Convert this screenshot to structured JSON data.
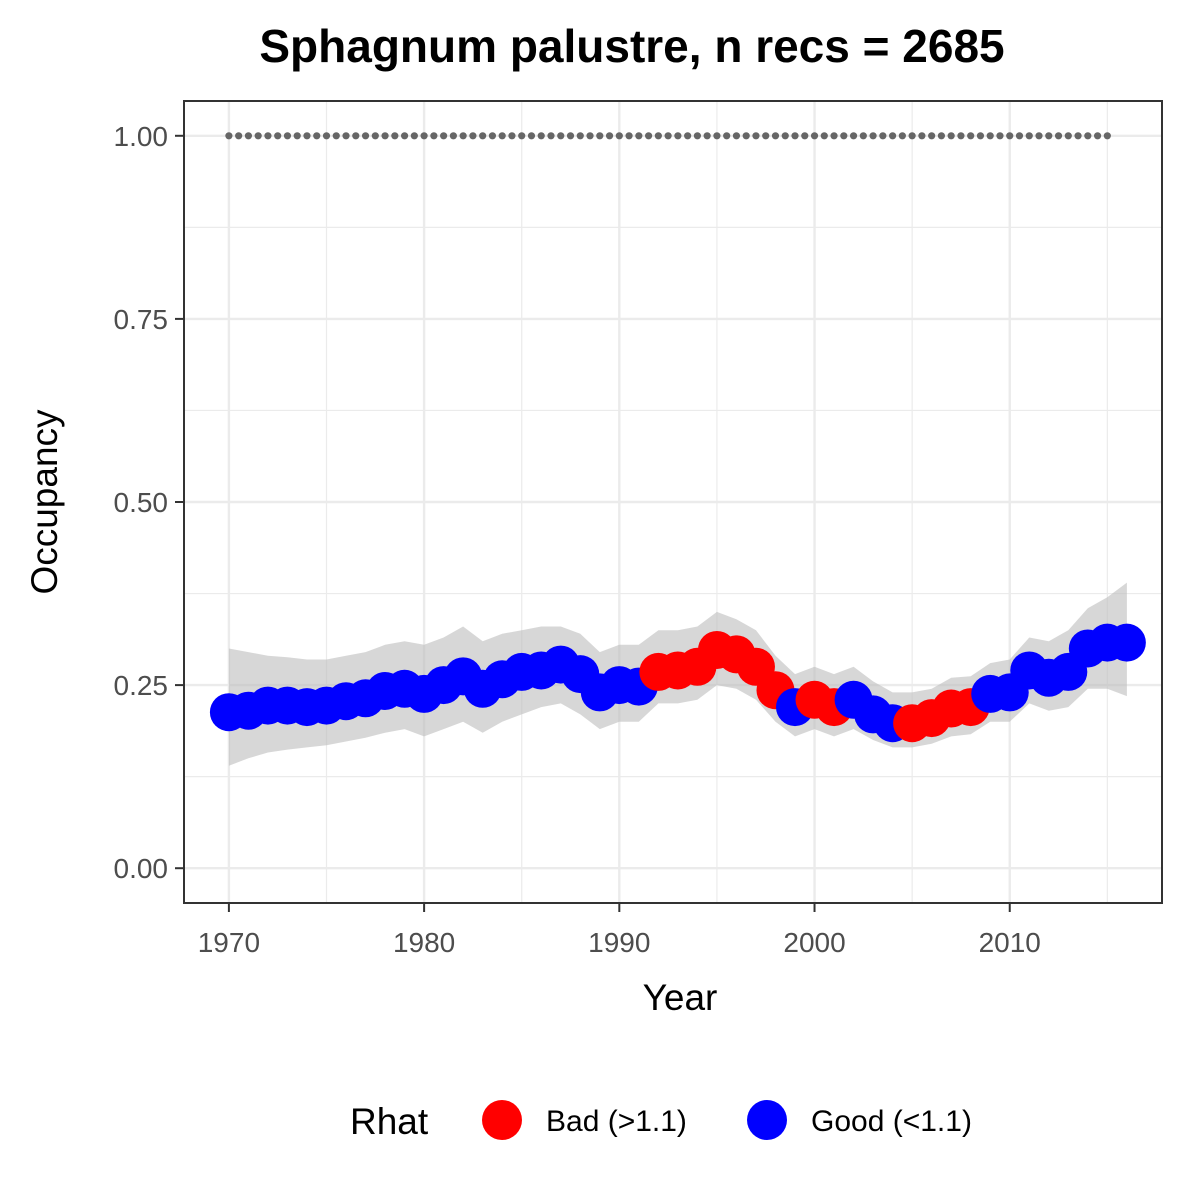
{
  "chart_data": {
    "type": "scatter",
    "title": "Sphagnum palustre, n recs = 2685",
    "xlabel": "Year",
    "ylabel": "Occupancy",
    "xlim": [
      1967.7,
      2017.8
    ],
    "ylim": [
      -0.0475,
      1.0475
    ],
    "x_ticks": [
      1970,
      1980,
      1990,
      2000,
      2010
    ],
    "x_tick_labels": [
      "1970",
      "1980",
      "1990",
      "2000",
      "2010"
    ],
    "y_ticks": [
      0,
      0.25,
      0.5,
      0.75,
      1.0
    ],
    "y_tick_labels": [
      "0.00",
      "0.25",
      "0.50",
      "0.75",
      "1.00"
    ],
    "grid": true,
    "legend": {
      "title": "Rhat",
      "placement": "bottom",
      "entries": [
        {
          "label": "Bad (>1.1)",
          "color": "#ff0000"
        },
        {
          "label": "Good (<1.1)",
          "color": "#0000ff"
        }
      ]
    },
    "colors": {
      "bad": "#ff0000",
      "good": "#0000ff",
      "ribbon": "#bebebe",
      "reference_dots": "#666666"
    },
    "reference_line": {
      "y": 1.0,
      "x_from": 1970,
      "x_to": 2015,
      "style": "dotted"
    },
    "series": [
      {
        "year": 1970,
        "occupancy": 0.213,
        "lower": 0.14,
        "upper": 0.3,
        "rhat": "Good"
      },
      {
        "year": 1971,
        "occupancy": 0.215,
        "lower": 0.15,
        "upper": 0.295,
        "rhat": "Good"
      },
      {
        "year": 1972,
        "occupancy": 0.222,
        "lower": 0.158,
        "upper": 0.29,
        "rhat": "Good"
      },
      {
        "year": 1973,
        "occupancy": 0.222,
        "lower": 0.162,
        "upper": 0.288,
        "rhat": "Good"
      },
      {
        "year": 1974,
        "occupancy": 0.22,
        "lower": 0.165,
        "upper": 0.285,
        "rhat": "Good"
      },
      {
        "year": 1975,
        "occupancy": 0.222,
        "lower": 0.168,
        "upper": 0.285,
        "rhat": "Good"
      },
      {
        "year": 1976,
        "occupancy": 0.228,
        "lower": 0.173,
        "upper": 0.29,
        "rhat": "Good"
      },
      {
        "year": 1977,
        "occupancy": 0.232,
        "lower": 0.178,
        "upper": 0.295,
        "rhat": "Good"
      },
      {
        "year": 1978,
        "occupancy": 0.242,
        "lower": 0.185,
        "upper": 0.305,
        "rhat": "Good"
      },
      {
        "year": 1979,
        "occupancy": 0.245,
        "lower": 0.19,
        "upper": 0.31,
        "rhat": "Good"
      },
      {
        "year": 1980,
        "occupancy": 0.238,
        "lower": 0.18,
        "upper": 0.305,
        "rhat": "Good"
      },
      {
        "year": 1981,
        "occupancy": 0.25,
        "lower": 0.19,
        "upper": 0.315,
        "rhat": "Good"
      },
      {
        "year": 1982,
        "occupancy": 0.262,
        "lower": 0.2,
        "upper": 0.33,
        "rhat": "Good"
      },
      {
        "year": 1983,
        "occupancy": 0.245,
        "lower": 0.185,
        "upper": 0.31,
        "rhat": "Good"
      },
      {
        "year": 1984,
        "occupancy": 0.258,
        "lower": 0.2,
        "upper": 0.32,
        "rhat": "Good"
      },
      {
        "year": 1985,
        "occupancy": 0.268,
        "lower": 0.21,
        "upper": 0.325,
        "rhat": "Good"
      },
      {
        "year": 1986,
        "occupancy": 0.27,
        "lower": 0.22,
        "upper": 0.33,
        "rhat": "Good"
      },
      {
        "year": 1987,
        "occupancy": 0.278,
        "lower": 0.225,
        "upper": 0.33,
        "rhat": "Good"
      },
      {
        "year": 1988,
        "occupancy": 0.265,
        "lower": 0.21,
        "upper": 0.32,
        "rhat": "Good"
      },
      {
        "year": 1989,
        "occupancy": 0.24,
        "lower": 0.19,
        "upper": 0.295,
        "rhat": "Good"
      },
      {
        "year": 1990,
        "occupancy": 0.25,
        "lower": 0.2,
        "upper": 0.305,
        "rhat": "Good"
      },
      {
        "year": 1991,
        "occupancy": 0.248,
        "lower": 0.2,
        "upper": 0.305,
        "rhat": "Good"
      },
      {
        "year": 1992,
        "occupancy": 0.268,
        "lower": 0.225,
        "upper": 0.325,
        "rhat": "Bad"
      },
      {
        "year": 1993,
        "occupancy": 0.27,
        "lower": 0.225,
        "upper": 0.325,
        "rhat": "Bad"
      },
      {
        "year": 1994,
        "occupancy": 0.275,
        "lower": 0.23,
        "upper": 0.33,
        "rhat": "Bad"
      },
      {
        "year": 1995,
        "occupancy": 0.298,
        "lower": 0.25,
        "upper": 0.35,
        "rhat": "Bad"
      },
      {
        "year": 1996,
        "occupancy": 0.292,
        "lower": 0.245,
        "upper": 0.34,
        "rhat": "Bad"
      },
      {
        "year": 1997,
        "occupancy": 0.275,
        "lower": 0.23,
        "upper": 0.325,
        "rhat": "Bad"
      },
      {
        "year": 1998,
        "occupancy": 0.243,
        "lower": 0.2,
        "upper": 0.29,
        "rhat": "Bad"
      },
      {
        "year": 1999,
        "occupancy": 0.22,
        "lower": 0.18,
        "upper": 0.265,
        "rhat": "Good"
      },
      {
        "year": 2000,
        "occupancy": 0.23,
        "lower": 0.19,
        "upper": 0.275,
        "rhat": "Bad"
      },
      {
        "year": 2001,
        "occupancy": 0.22,
        "lower": 0.18,
        "upper": 0.265,
        "rhat": "Bad"
      },
      {
        "year": 2002,
        "occupancy": 0.23,
        "lower": 0.19,
        "upper": 0.275,
        "rhat": "Good"
      },
      {
        "year": 2003,
        "occupancy": 0.21,
        "lower": 0.175,
        "upper": 0.255,
        "rhat": "Good"
      },
      {
        "year": 2004,
        "occupancy": 0.198,
        "lower": 0.165,
        "upper": 0.24,
        "rhat": "Good"
      },
      {
        "year": 2005,
        "occupancy": 0.198,
        "lower": 0.165,
        "upper": 0.24,
        "rhat": "Bad"
      },
      {
        "year": 2006,
        "occupancy": 0.205,
        "lower": 0.17,
        "upper": 0.245,
        "rhat": "Bad"
      },
      {
        "year": 2007,
        "occupancy": 0.218,
        "lower": 0.18,
        "upper": 0.26,
        "rhat": "Bad"
      },
      {
        "year": 2008,
        "occupancy": 0.22,
        "lower": 0.183,
        "upper": 0.262,
        "rhat": "Bad"
      },
      {
        "year": 2009,
        "occupancy": 0.238,
        "lower": 0.2,
        "upper": 0.28,
        "rhat": "Good"
      },
      {
        "year": 2010,
        "occupancy": 0.24,
        "lower": 0.2,
        "upper": 0.285,
        "rhat": "Good"
      },
      {
        "year": 2011,
        "occupancy": 0.27,
        "lower": 0.225,
        "upper": 0.315,
        "rhat": "Good"
      },
      {
        "year": 2012,
        "occupancy": 0.26,
        "lower": 0.215,
        "upper": 0.31,
        "rhat": "Good"
      },
      {
        "year": 2013,
        "occupancy": 0.268,
        "lower": 0.22,
        "upper": 0.325,
        "rhat": "Good"
      },
      {
        "year": 2014,
        "occupancy": 0.3,
        "lower": 0.245,
        "upper": 0.355,
        "rhat": "Good"
      },
      {
        "year": 2015,
        "occupancy": 0.308,
        "lower": 0.245,
        "upper": 0.37,
        "rhat": "Good"
      },
      {
        "year": 2016,
        "occupancy": 0.308,
        "lower": 0.235,
        "upper": 0.39,
        "rhat": "Good"
      }
    ]
  }
}
